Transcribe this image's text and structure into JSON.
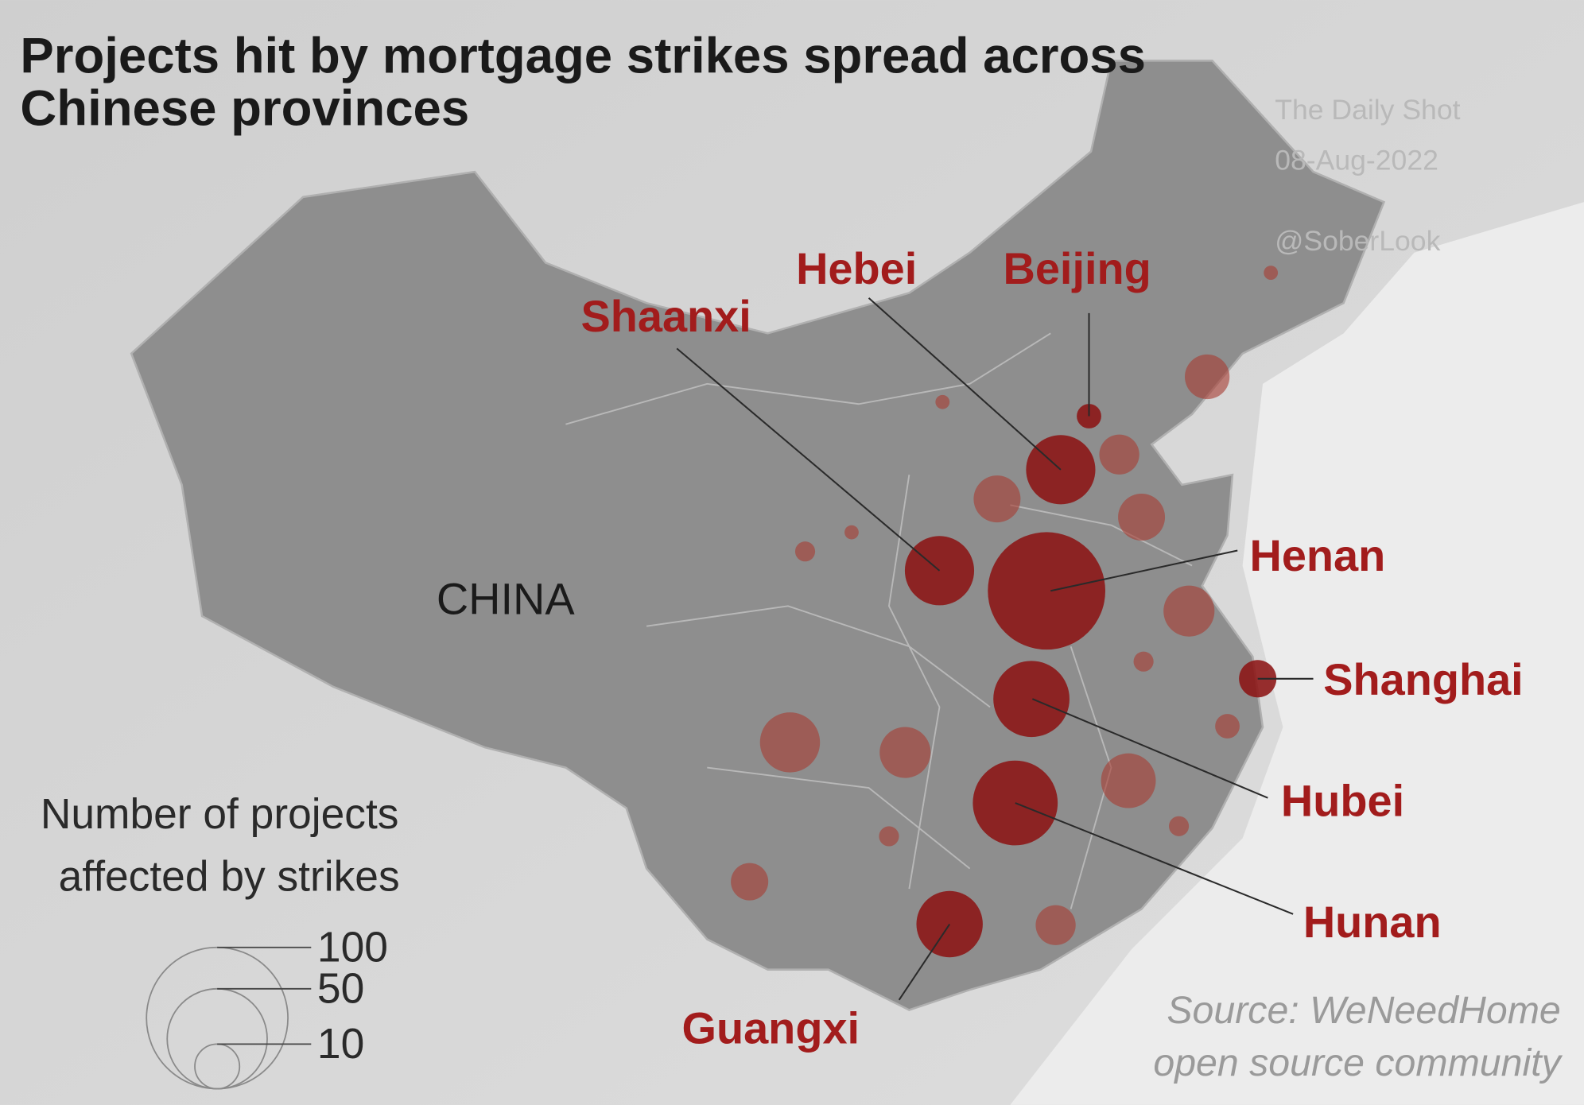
{
  "title": [
    "Projects hit by mortgage strikes spread across",
    "Chinese provinces"
  ],
  "watermark": [
    "The Daily Shot",
    "08-Aug-2022",
    "@SoberLook"
  ],
  "country_label": "CHINA",
  "bubbles": [
    {
      "name": "Henan",
      "value": 69
    },
    {
      "name": "Hunan",
      "value": 36
    },
    {
      "name": "Hubei",
      "value": 29
    },
    {
      "name": "Guangxi",
      "value": 22
    },
    {
      "name": "Shaanxi",
      "value": 24
    },
    {
      "name": "Hebei",
      "value": 24
    },
    {
      "name": "Beijing",
      "value": 3
    },
    {
      "name": "Shanghai",
      "value": 7
    },
    {
      "value": 10
    },
    {
      "value": 8
    },
    {
      "value": 11
    },
    {
      "value": 11
    },
    {
      "value": 13
    },
    {
      "value": 13
    },
    {
      "value": 18
    },
    {
      "value": 15
    },
    {
      "value": 8
    },
    {
      "value": 7
    },
    {
      "value": 1
    },
    {
      "value": 1
    },
    {
      "value": 2
    },
    {
      "value": 1
    },
    {
      "value": 2
    },
    {
      "value": 3
    },
    {
      "value": 2
    },
    {
      "value": 2
    }
  ],
  "legend": {
    "title": [
      "Number of projects",
      "affected by strikes"
    ],
    "sizes": [
      100,
      50,
      10
    ]
  },
  "source": [
    "Source: WeNeedHome",
    "open source community"
  ]
}
